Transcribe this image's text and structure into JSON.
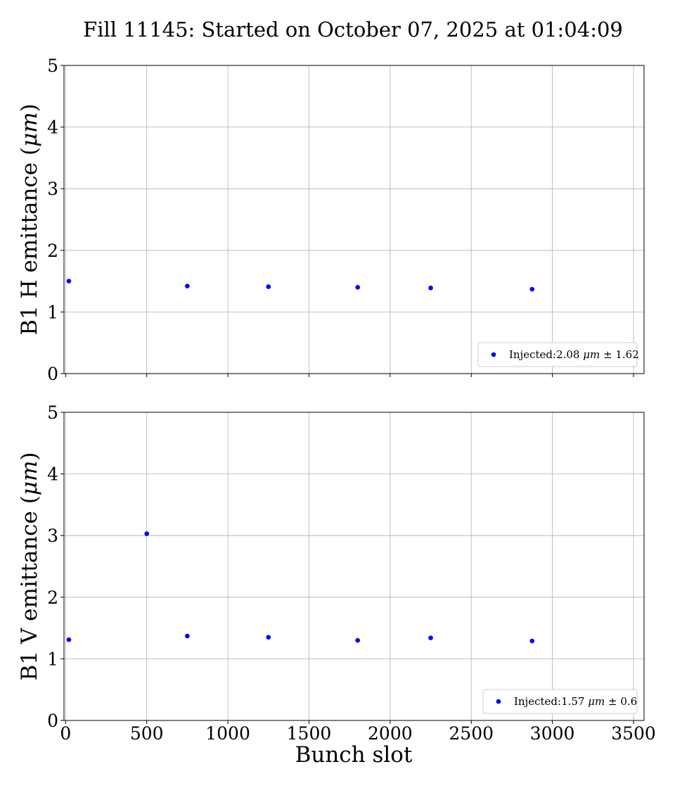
{
  "figure": {
    "title": "Fill 11145: Started on October 07, 2025 at 01:04:09",
    "xlabel": "Bunch slot"
  },
  "colors": {
    "marker": "#0000ff"
  },
  "chart_data": [
    {
      "type": "scatter",
      "ylabel": "B1 H emittance (μm)",
      "ylabel_parts": {
        "pre": "B1 H emittance (",
        "italic": "μm",
        "post": ")"
      },
      "xlim": [
        -10,
        3565
      ],
      "ylim": [
        0,
        5
      ],
      "xticks": [
        "0",
        "500",
        "1000",
        "1500",
        "2000",
        "2500",
        "3000",
        "3500"
      ],
      "xtick_values": [
        0,
        500,
        1000,
        1500,
        2000,
        2500,
        3000,
        3500
      ],
      "show_xtick_labels": false,
      "yticks": [
        "0",
        "1",
        "2",
        "3",
        "4",
        "5"
      ],
      "ytick_values": [
        0,
        1,
        2,
        3,
        4,
        5
      ],
      "grid": true,
      "legend_position": "lower-right",
      "series": [
        {
          "name": "Injected:2.08 μm ± 1.62",
          "legend_parts": {
            "pre": "Injected:2.08 ",
            "italic": "μm",
            "post": " ± 1.62"
          },
          "x": [
            20,
            750,
            1250,
            1800,
            2250,
            2875
          ],
          "y": [
            1.5,
            1.42,
            1.41,
            1.4,
            1.39,
            1.37
          ]
        }
      ]
    },
    {
      "type": "scatter",
      "ylabel": "B1 V emittance (μm)",
      "ylabel_parts": {
        "pre": "B1 V emittance (",
        "italic": "μm",
        "post": ")"
      },
      "xlim": [
        -10,
        3565
      ],
      "ylim": [
        0,
        5
      ],
      "xticks": [
        "0",
        "500",
        "1000",
        "1500",
        "2000",
        "2500",
        "3000",
        "3500"
      ],
      "xtick_values": [
        0,
        500,
        1000,
        1500,
        2000,
        2500,
        3000,
        3500
      ],
      "show_xtick_labels": true,
      "yticks": [
        "0",
        "1",
        "2",
        "3",
        "4",
        "5"
      ],
      "ytick_values": [
        0,
        1,
        2,
        3,
        4,
        5
      ],
      "grid": true,
      "legend_position": "lower-right",
      "series": [
        {
          "name": "Injected:1.57 μm ± 0.6",
          "legend_parts": {
            "pre": "Injected:1.57 ",
            "italic": "μm",
            "post": " ± 0.6"
          },
          "x": [
            20,
            500,
            750,
            1250,
            1800,
            2250,
            2875
          ],
          "y": [
            1.31,
            3.03,
            1.37,
            1.35,
            1.3,
            1.34,
            1.29
          ]
        }
      ]
    }
  ]
}
